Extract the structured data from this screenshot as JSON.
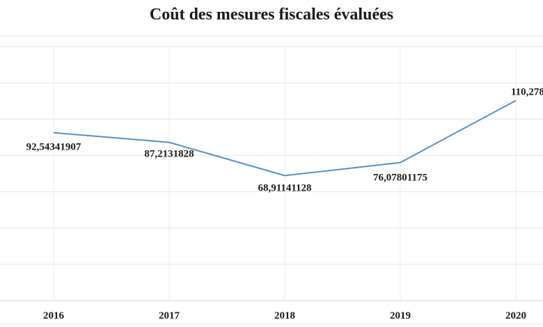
{
  "chart_data": {
    "type": "line",
    "title": "Coût des mesures fiscales évaluées",
    "categories": [
      "2016",
      "2017",
      "2018",
      "2019",
      "2020"
    ],
    "series": [
      {
        "values": [
          92.54341907,
          87.2131828,
          68.91141128,
          76.07801175,
          110.278
        ],
        "labels": [
          "92,54341907",
          "87,2131828",
          "68,91141128",
          "76,07801175",
          "110,278"
        ],
        "color": "#5b8ec2"
      }
    ],
    "xlabel": "",
    "ylabel": "",
    "ylim": [
      0,
      140
    ],
    "grid": true,
    "legend": "none"
  }
}
